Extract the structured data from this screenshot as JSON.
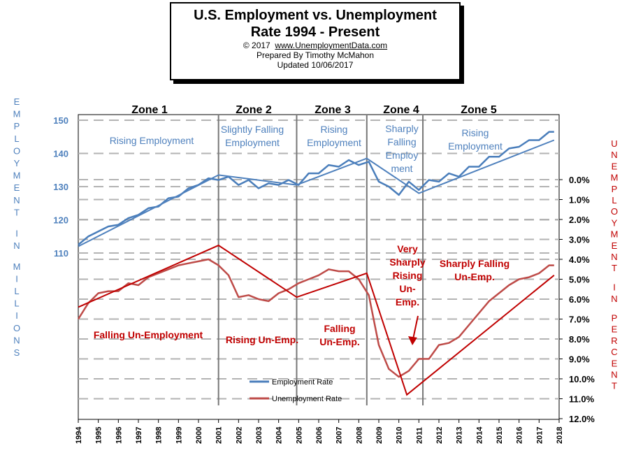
{
  "title": {
    "line1": "U.S. Employment vs. Unemployment",
    "line2": "Rate 1994 - Present",
    "copyright": "© 2017",
    "link": "www.UnemploymentData.com",
    "prepared": "Prepared  By Timothy McMahon",
    "updated": "Updated  10/06/2017"
  },
  "left_axis_label": "EMPLOYMENT IN MILLIONS",
  "right_axis_label": "UNEMPLOYMENT IN PERCENT",
  "colors": {
    "employment": "#4a7ebb",
    "unemployment": "#be4b48",
    "trend_red": "#c00000",
    "axis_blue": "#4f81bd",
    "grid": "#b3b3b3"
  },
  "zones": [
    {
      "label": "Zone 1",
      "emp_text": [
        "Rising Employment"
      ],
      "unemp_text": [
        "Falling Un-Employment"
      ]
    },
    {
      "label": "Zone 2",
      "emp_text": [
        "Slightly Falling",
        "Employment"
      ],
      "unemp_text": [
        "Rising Un-Emp."
      ]
    },
    {
      "label": "Zone 3",
      "emp_text": [
        "Rising",
        "Employment"
      ],
      "unemp_text": [
        "Falling",
        "Un-Emp."
      ]
    },
    {
      "label": "Zone 4",
      "emp_text": [
        "Sharply",
        "Falling",
        "Employ",
        "ment"
      ],
      "unemp_text": [
        "Very",
        "Sharply",
        "Rising",
        "Un-",
        "Emp."
      ]
    },
    {
      "label": "Zone 5",
      "emp_text": [
        "Rising",
        "Employment"
      ],
      "unemp_text": [
        "Sharply Falling",
        "Un-Emp."
      ]
    }
  ],
  "zone_boundaries": [
    2001.0,
    2004.9,
    2008.4,
    2011.2
  ],
  "legend": [
    "Employment Rate",
    "Unemployment Rate"
  ],
  "chart_data": {
    "type": "line",
    "title": "U.S. Employment vs. Unemployment Rate 1994 - Present",
    "x_ticks": [
      "1994",
      "1995",
      "1996",
      "1997",
      "1998",
      "1999",
      "2000",
      "2001",
      "2002",
      "2003",
      "2004",
      "2005",
      "2006",
      "2007",
      "2008",
      "2009",
      "2010",
      "2011",
      "2012",
      "2013",
      "2014",
      "2015",
      "2016",
      "2017",
      "2018"
    ],
    "xlim": [
      1994,
      2018
    ],
    "left_axis": {
      "label": "EMPLOYMENT IN MILLIONS",
      "ticks": [
        110,
        120,
        130,
        140,
        150
      ]
    },
    "right_axis": {
      "label": "UNEMPLOYMENT IN PERCENT",
      "ticks": [
        "0.0%",
        "1.0%",
        "2.0%",
        "3.0%",
        "4.0%",
        "5.0%",
        "6.0%",
        "7.0%",
        "8.0%",
        "9.0%",
        "10.0%",
        "11.0%",
        "12.0%"
      ],
      "inverted": true
    },
    "series": [
      {
        "name": "Employment Rate",
        "axis": "left",
        "color": "#4a7ebb",
        "x": [
          1994.0,
          1994.5,
          1995.0,
          1995.5,
          1996.0,
          1996.5,
          1997.0,
          1997.5,
          1998.0,
          1998.5,
          1999.0,
          1999.5,
          2000.0,
          2000.5,
          2001.0,
          2001.5,
          2002.0,
          2002.5,
          2003.0,
          2003.5,
          2004.0,
          2004.5,
          2005.0,
          2005.5,
          2006.0,
          2006.5,
          2007.0,
          2007.5,
          2008.0,
          2008.5,
          2009.0,
          2009.5,
          2010.0,
          2010.5,
          2011.0,
          2011.5,
          2012.0,
          2012.5,
          2013.0,
          2013.5,
          2014.0,
          2014.5,
          2015.0,
          2015.5,
          2016.0,
          2016.5,
          2017.0,
          2017.5,
          2017.75
        ],
        "values": [
          112.5,
          115,
          116.5,
          118,
          118.5,
          120.5,
          121.5,
          123.5,
          124,
          126.5,
          127,
          129.5,
          130.5,
          132.5,
          132,
          133,
          130.5,
          132,
          129.5,
          131,
          130.5,
          132,
          130.5,
          134,
          134,
          136.5,
          136,
          138,
          136.5,
          137.5,
          131.5,
          130,
          127.5,
          131.5,
          129,
          132,
          131.5,
          134,
          133,
          136,
          136,
          139,
          139,
          141.5,
          142,
          144,
          144,
          146.5,
          146.5
        ]
      },
      {
        "name": "Unemployment Rate",
        "axis": "right",
        "color": "#be4b48",
        "x": [
          1994.0,
          1994.5,
          1995.0,
          1995.5,
          1996.0,
          1996.5,
          1997.0,
          1997.5,
          1998.0,
          1998.5,
          1999.0,
          1999.5,
          2000.0,
          2000.5,
          2001.0,
          2001.5,
          2002.0,
          2002.5,
          2003.0,
          2003.5,
          2004.0,
          2004.5,
          2005.0,
          2005.5,
          2006.0,
          2006.5,
          2007.0,
          2007.5,
          2008.0,
          2008.5,
          2009.0,
          2009.5,
          2010.0,
          2010.5,
          2011.0,
          2011.5,
          2012.0,
          2012.5,
          2013.0,
          2013.5,
          2014.0,
          2014.5,
          2015.0,
          2015.5,
          2016.0,
          2016.5,
          2017.0,
          2017.5,
          2017.75
        ],
        "values": [
          7.0,
          6.2,
          5.7,
          5.6,
          5.6,
          5.2,
          5.3,
          4.9,
          4.7,
          4.5,
          4.3,
          4.2,
          4.1,
          4.0,
          4.3,
          4.8,
          5.9,
          5.8,
          6.0,
          6.1,
          5.7,
          5.5,
          5.2,
          5.0,
          4.8,
          4.5,
          4.6,
          4.6,
          5.0,
          5.8,
          8.3,
          9.5,
          9.9,
          9.6,
          9.0,
          9.0,
          8.3,
          8.2,
          7.9,
          7.3,
          6.7,
          6.1,
          5.7,
          5.3,
          5.0,
          4.9,
          4.7,
          4.3,
          4.3
        ]
      }
    ]
  }
}
